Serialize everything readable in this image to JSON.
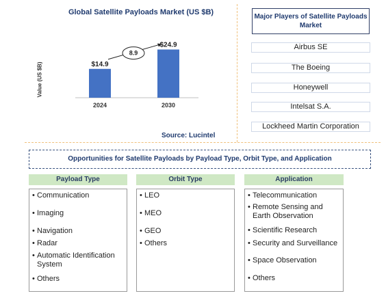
{
  "chart_data": {
    "type": "bar",
    "title": "Global Satellite Payloads Market (US $B)",
    "ylabel": "Value (US $B)",
    "categories": [
      "2024",
      "2030"
    ],
    "values": [
      14.9,
      24.9
    ],
    "value_labels": [
      "$14.9",
      "$24.9"
    ],
    "cagr_label": "8.9",
    "ylim": [
      0,
      30
    ],
    "bar_color": "#4472c4",
    "source": "Source: Lucintel"
  },
  "players": {
    "header": "Major Players of Satellite Payloads Market",
    "items": [
      "Airbus SE",
      "The Boeing",
      "Honeywell",
      "Intelsat S.A.",
      "Lockheed Martin Corporation"
    ]
  },
  "opportunities": {
    "banner": "Opportunities for Satellite Payloads by Payload Type, Orbit Type, and Application",
    "columns": [
      {
        "title": "Payload Type",
        "items": [
          "Communication",
          "Imaging",
          "Navigation",
          "Radar",
          "Automatic Identification System",
          "Others"
        ]
      },
      {
        "title": "Orbit Type",
        "items": [
          "LEO",
          "MEO",
          "GEO",
          "Others"
        ]
      },
      {
        "title": "Application",
        "items": [
          "Telecommunication",
          "Remote Sensing and Earth Observation",
          "Scientific Research",
          "Security and Surveillance",
          "Space Observation",
          "Others"
        ]
      }
    ]
  },
  "colors": {
    "accent": "#1f3a6e",
    "header_green": "#cfe8c4",
    "separator": "#f0c07a"
  }
}
